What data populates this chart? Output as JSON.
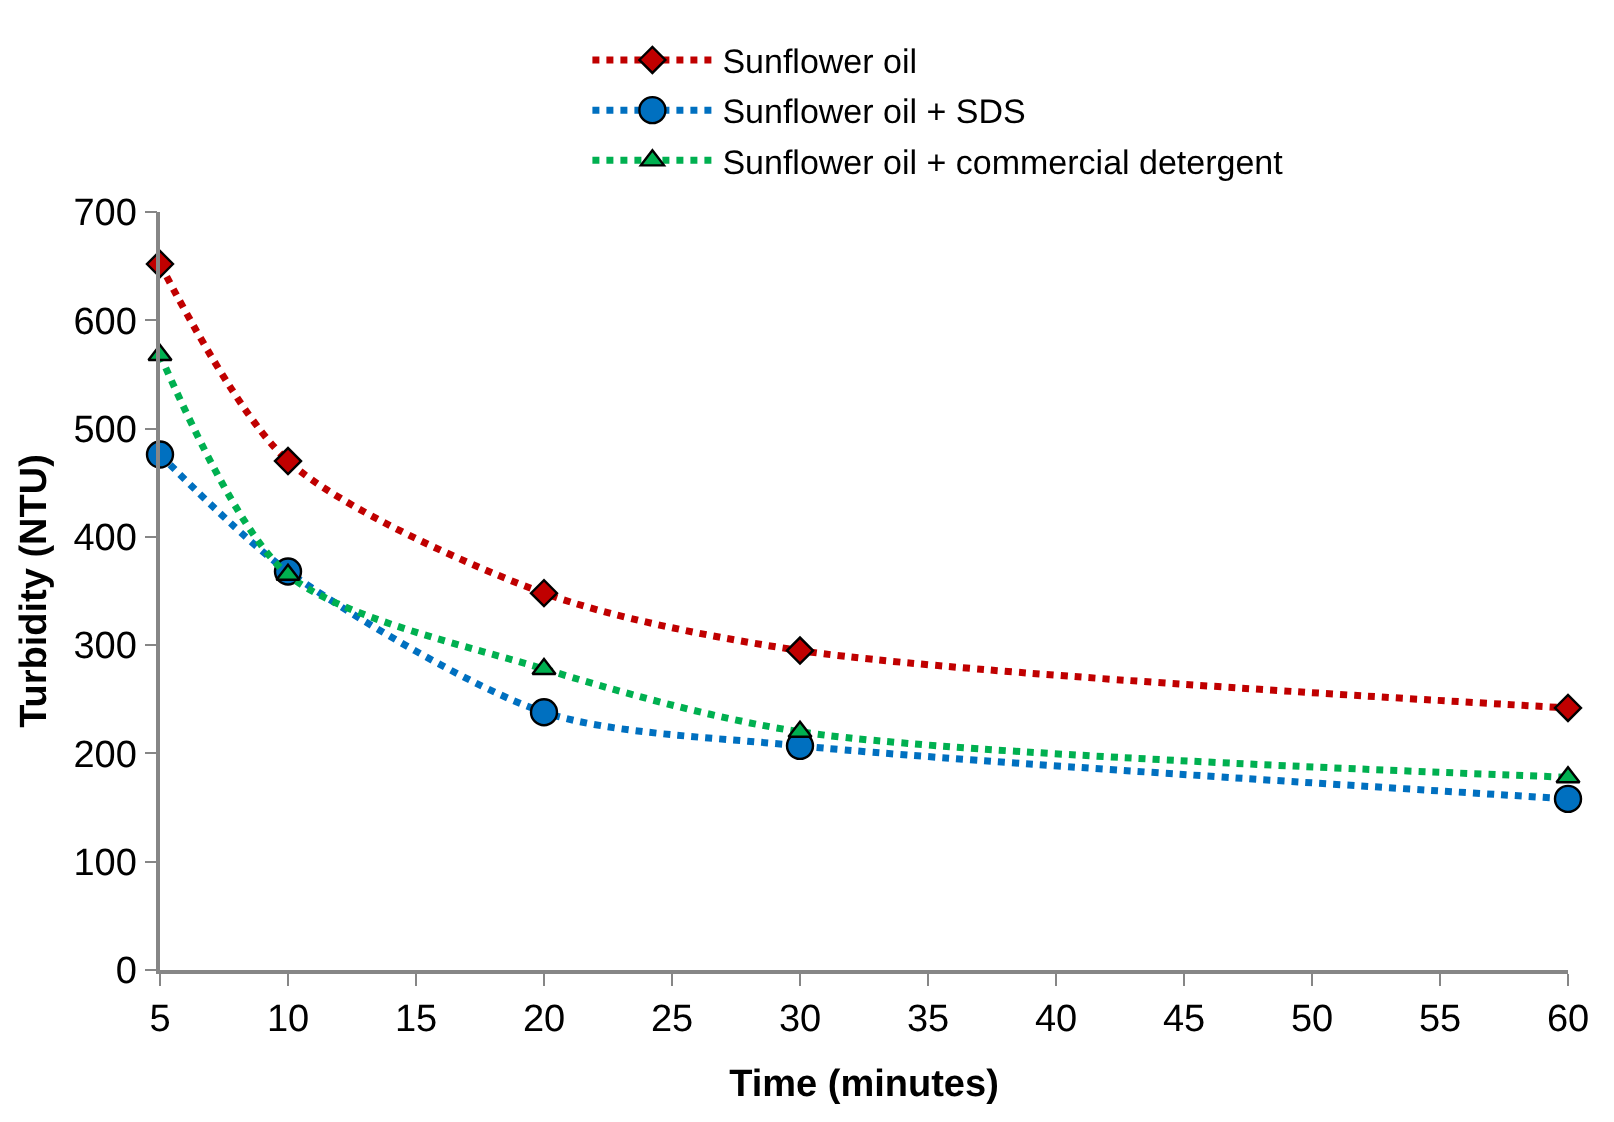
{
  "chart_data": {
    "type": "line",
    "xlabel": "Time (minutes)",
    "ylabel": "Turbidity (NTU)",
    "x": [
      5,
      10,
      20,
      30,
      60
    ],
    "series": [
      {
        "name": "Sunflower oil",
        "color": "#c00000",
        "values": [
          652,
          470,
          348,
          295,
          242
        ],
        "marker": "diamond"
      },
      {
        "name": "Sunflower oil + SDS",
        "color": "#0070c0",
        "values": [
          476,
          368,
          238,
          207,
          158
        ],
        "marker": "circle"
      },
      {
        "name": "Sunflower oil + commercial detergent",
        "color": "#00b050",
        "values": [
          568,
          365,
          278,
          220,
          178
        ],
        "marker": "triangle"
      }
    ],
    "xlim": [
      5,
      60
    ],
    "xticks": [
      5,
      10,
      15,
      20,
      25,
      30,
      35,
      40,
      45,
      50,
      55,
      60
    ],
    "ylim": [
      0,
      700
    ],
    "yticks": [
      0,
      100,
      200,
      300,
      400,
      500,
      600,
      700
    ],
    "grid": false,
    "legend": "top",
    "line_style": "dotted"
  }
}
